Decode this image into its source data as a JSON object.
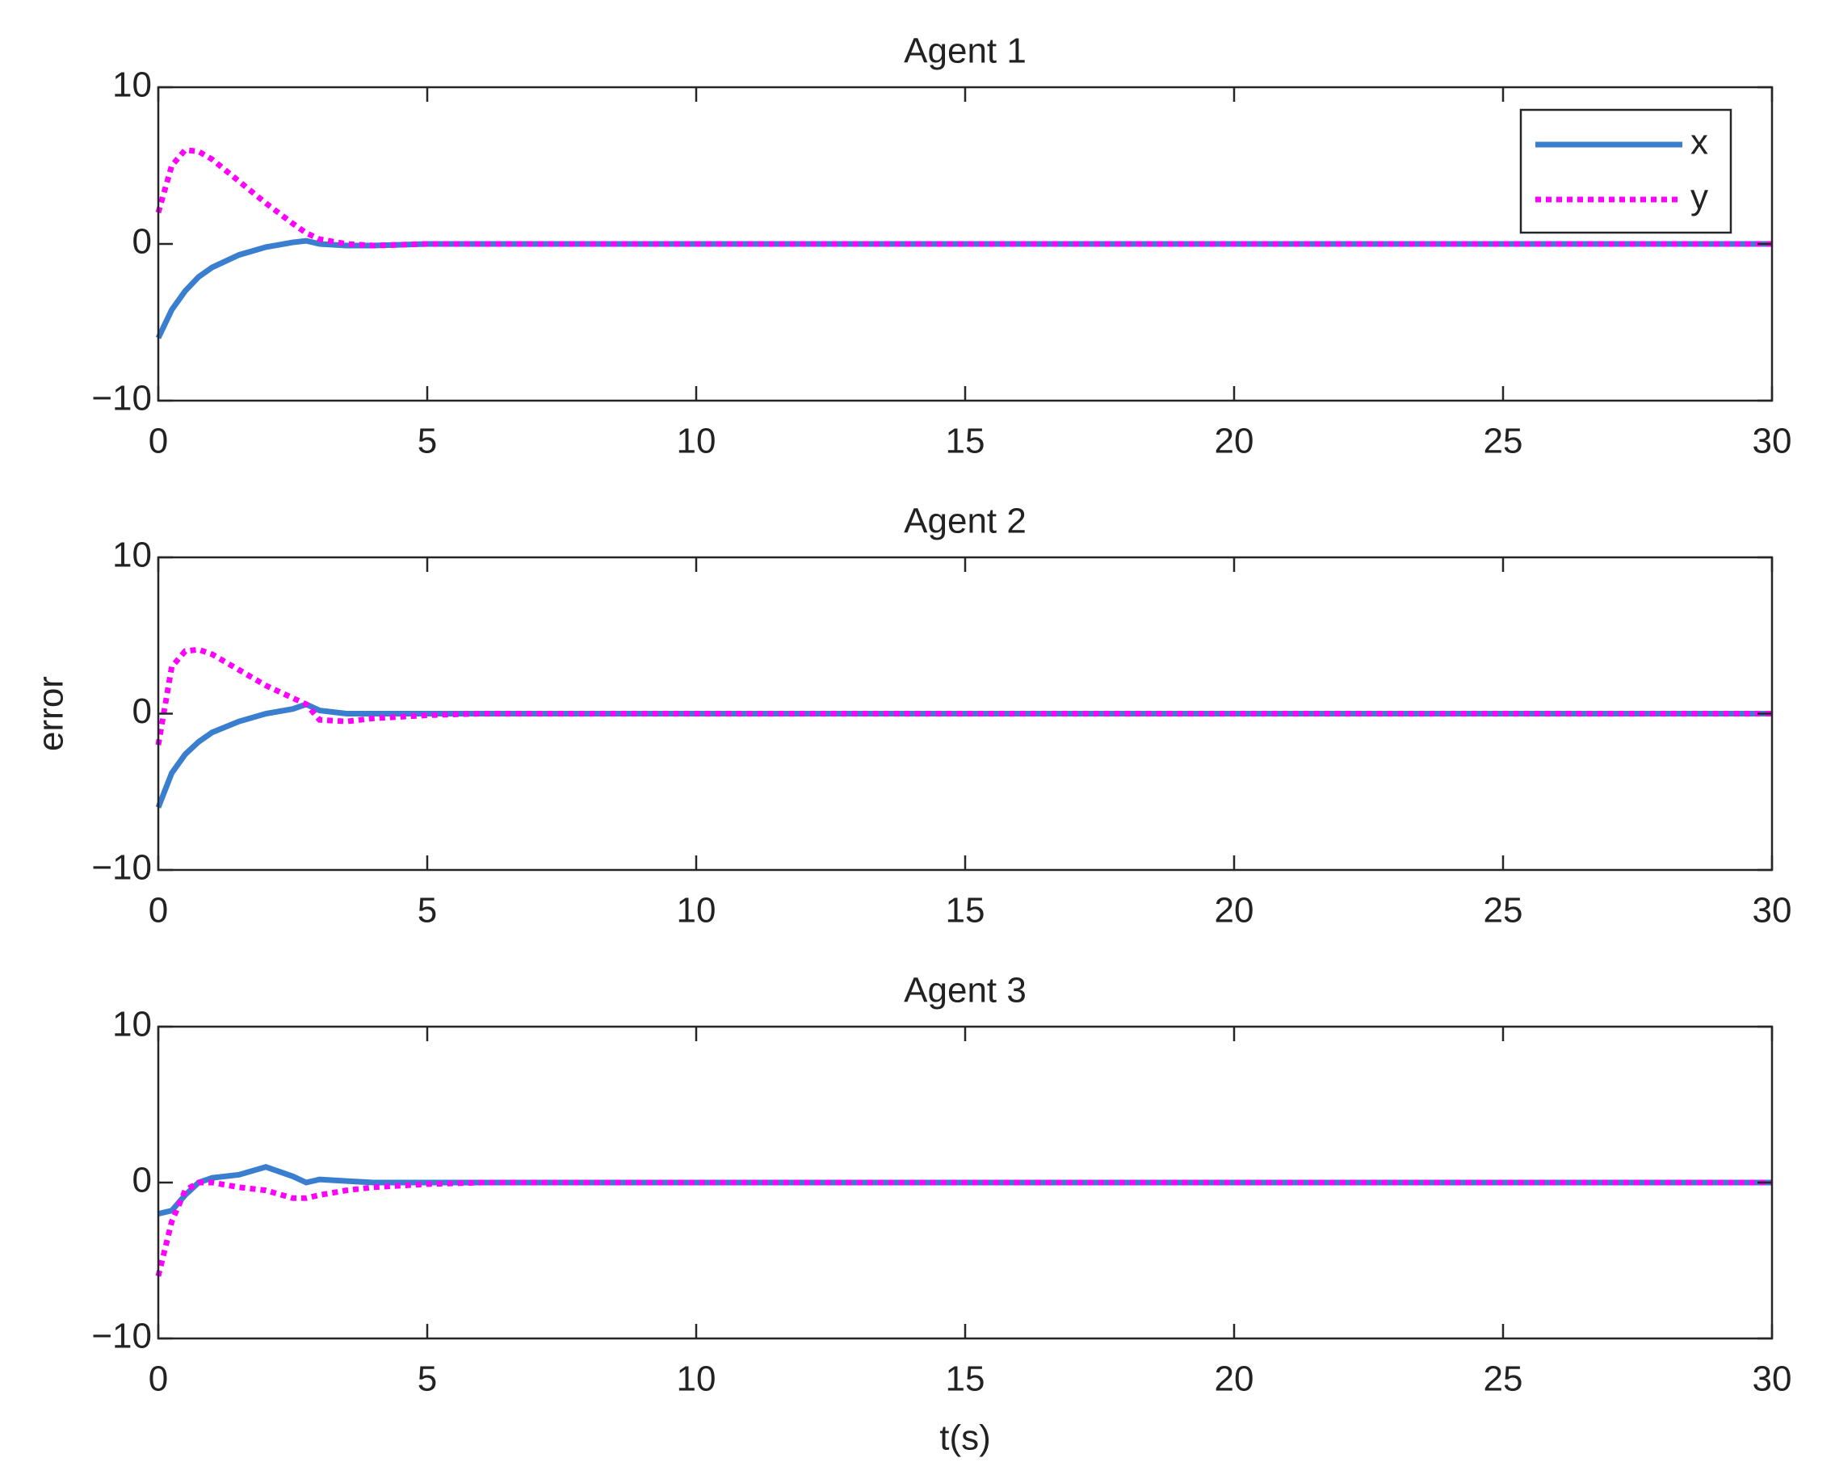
{
  "chart_data": [
    {
      "type": "line",
      "title": "Agent 1",
      "x": [
        0,
        0.25,
        0.5,
        0.75,
        1,
        1.5,
        2,
        2.5,
        2.75,
        3,
        3.5,
        4,
        5,
        6,
        8,
        10,
        15,
        20,
        25,
        30
      ],
      "series": [
        {
          "name": "x",
          "color": "#3a7fcf",
          "style": "solid",
          "values": [
            -6,
            -4.2,
            -3,
            -2.1,
            -1.5,
            -0.7,
            -0.2,
            0.1,
            0.2,
            0,
            -0.1,
            -0.1,
            0,
            0,
            0,
            0,
            0,
            0,
            0,
            0
          ]
        },
        {
          "name": "y",
          "color": "#ff00ff",
          "style": "dotted",
          "values": [
            2,
            5,
            6,
            5.9,
            5.4,
            4,
            2.6,
            1.3,
            0.7,
            0.3,
            0,
            -0.1,
            0,
            0,
            0,
            0,
            0,
            0,
            0,
            0
          ]
        }
      ],
      "xlim": [
        0,
        30
      ],
      "xticks": [
        0,
        5,
        10,
        15,
        20,
        25,
        30
      ],
      "ylim": [
        -10,
        10
      ],
      "yticks": [
        {
          "value": -10,
          "label": "−10"
        },
        0,
        10
      ],
      "legend": "upper right"
    },
    {
      "type": "line",
      "title": "Agent 2",
      "ylabel": "error",
      "x": [
        0,
        0.25,
        0.5,
        0.75,
        1,
        1.5,
        2,
        2.5,
        2.75,
        3,
        3.5,
        4,
        5,
        6,
        8,
        10,
        15,
        20,
        25,
        30
      ],
      "series": [
        {
          "name": "x",
          "color": "#3a7fcf",
          "style": "solid",
          "values": [
            -6,
            -3.8,
            -2.6,
            -1.8,
            -1.2,
            -0.5,
            0,
            0.3,
            0.6,
            0.2,
            0,
            0,
            0,
            0,
            0,
            0,
            0,
            0,
            0,
            0
          ]
        },
        {
          "name": "y",
          "color": "#ff00ff",
          "style": "dotted",
          "values": [
            -2,
            3,
            4,
            4.1,
            3.8,
            2.8,
            1.8,
            1,
            0.6,
            -0.4,
            -0.5,
            -0.3,
            -0.1,
            0,
            0,
            0,
            0,
            0,
            0,
            0
          ]
        }
      ],
      "xlim": [
        0,
        30
      ],
      "xticks": [
        0,
        5,
        10,
        15,
        20,
        25,
        30
      ],
      "ylim": [
        -10,
        10
      ],
      "yticks": [
        {
          "value": -10,
          "label": "−10"
        },
        0,
        10
      ]
    },
    {
      "type": "line",
      "title": "Agent 3",
      "xlabel": "t(s)",
      "x": [
        0,
        0.25,
        0.5,
        0.75,
        1,
        1.5,
        2,
        2.5,
        2.75,
        3,
        3.5,
        4,
        5,
        6,
        8,
        10,
        15,
        20,
        25,
        30
      ],
      "series": [
        {
          "name": "x",
          "color": "#3a7fcf",
          "style": "solid",
          "values": [
            -2,
            -1.8,
            -0.8,
            0,
            0.3,
            0.5,
            1,
            0.4,
            0,
            0.2,
            0.1,
            0,
            0,
            0,
            0,
            0,
            0,
            0,
            0,
            0
          ]
        },
        {
          "name": "y",
          "color": "#ff00ff",
          "style": "dotted",
          "values": [
            -6,
            -2.5,
            -0.5,
            0,
            0,
            -0.3,
            -0.5,
            -1,
            -1,
            -0.8,
            -0.5,
            -0.3,
            -0.1,
            0,
            0,
            0,
            0,
            0,
            0,
            0
          ]
        }
      ],
      "xlim": [
        0,
        30
      ],
      "xticks": [
        0,
        5,
        10,
        15,
        20,
        25,
        30
      ],
      "ylim": [
        -10,
        10
      ],
      "yticks": [
        {
          "value": -10,
          "label": "−10"
        },
        0,
        10
      ]
    }
  ]
}
